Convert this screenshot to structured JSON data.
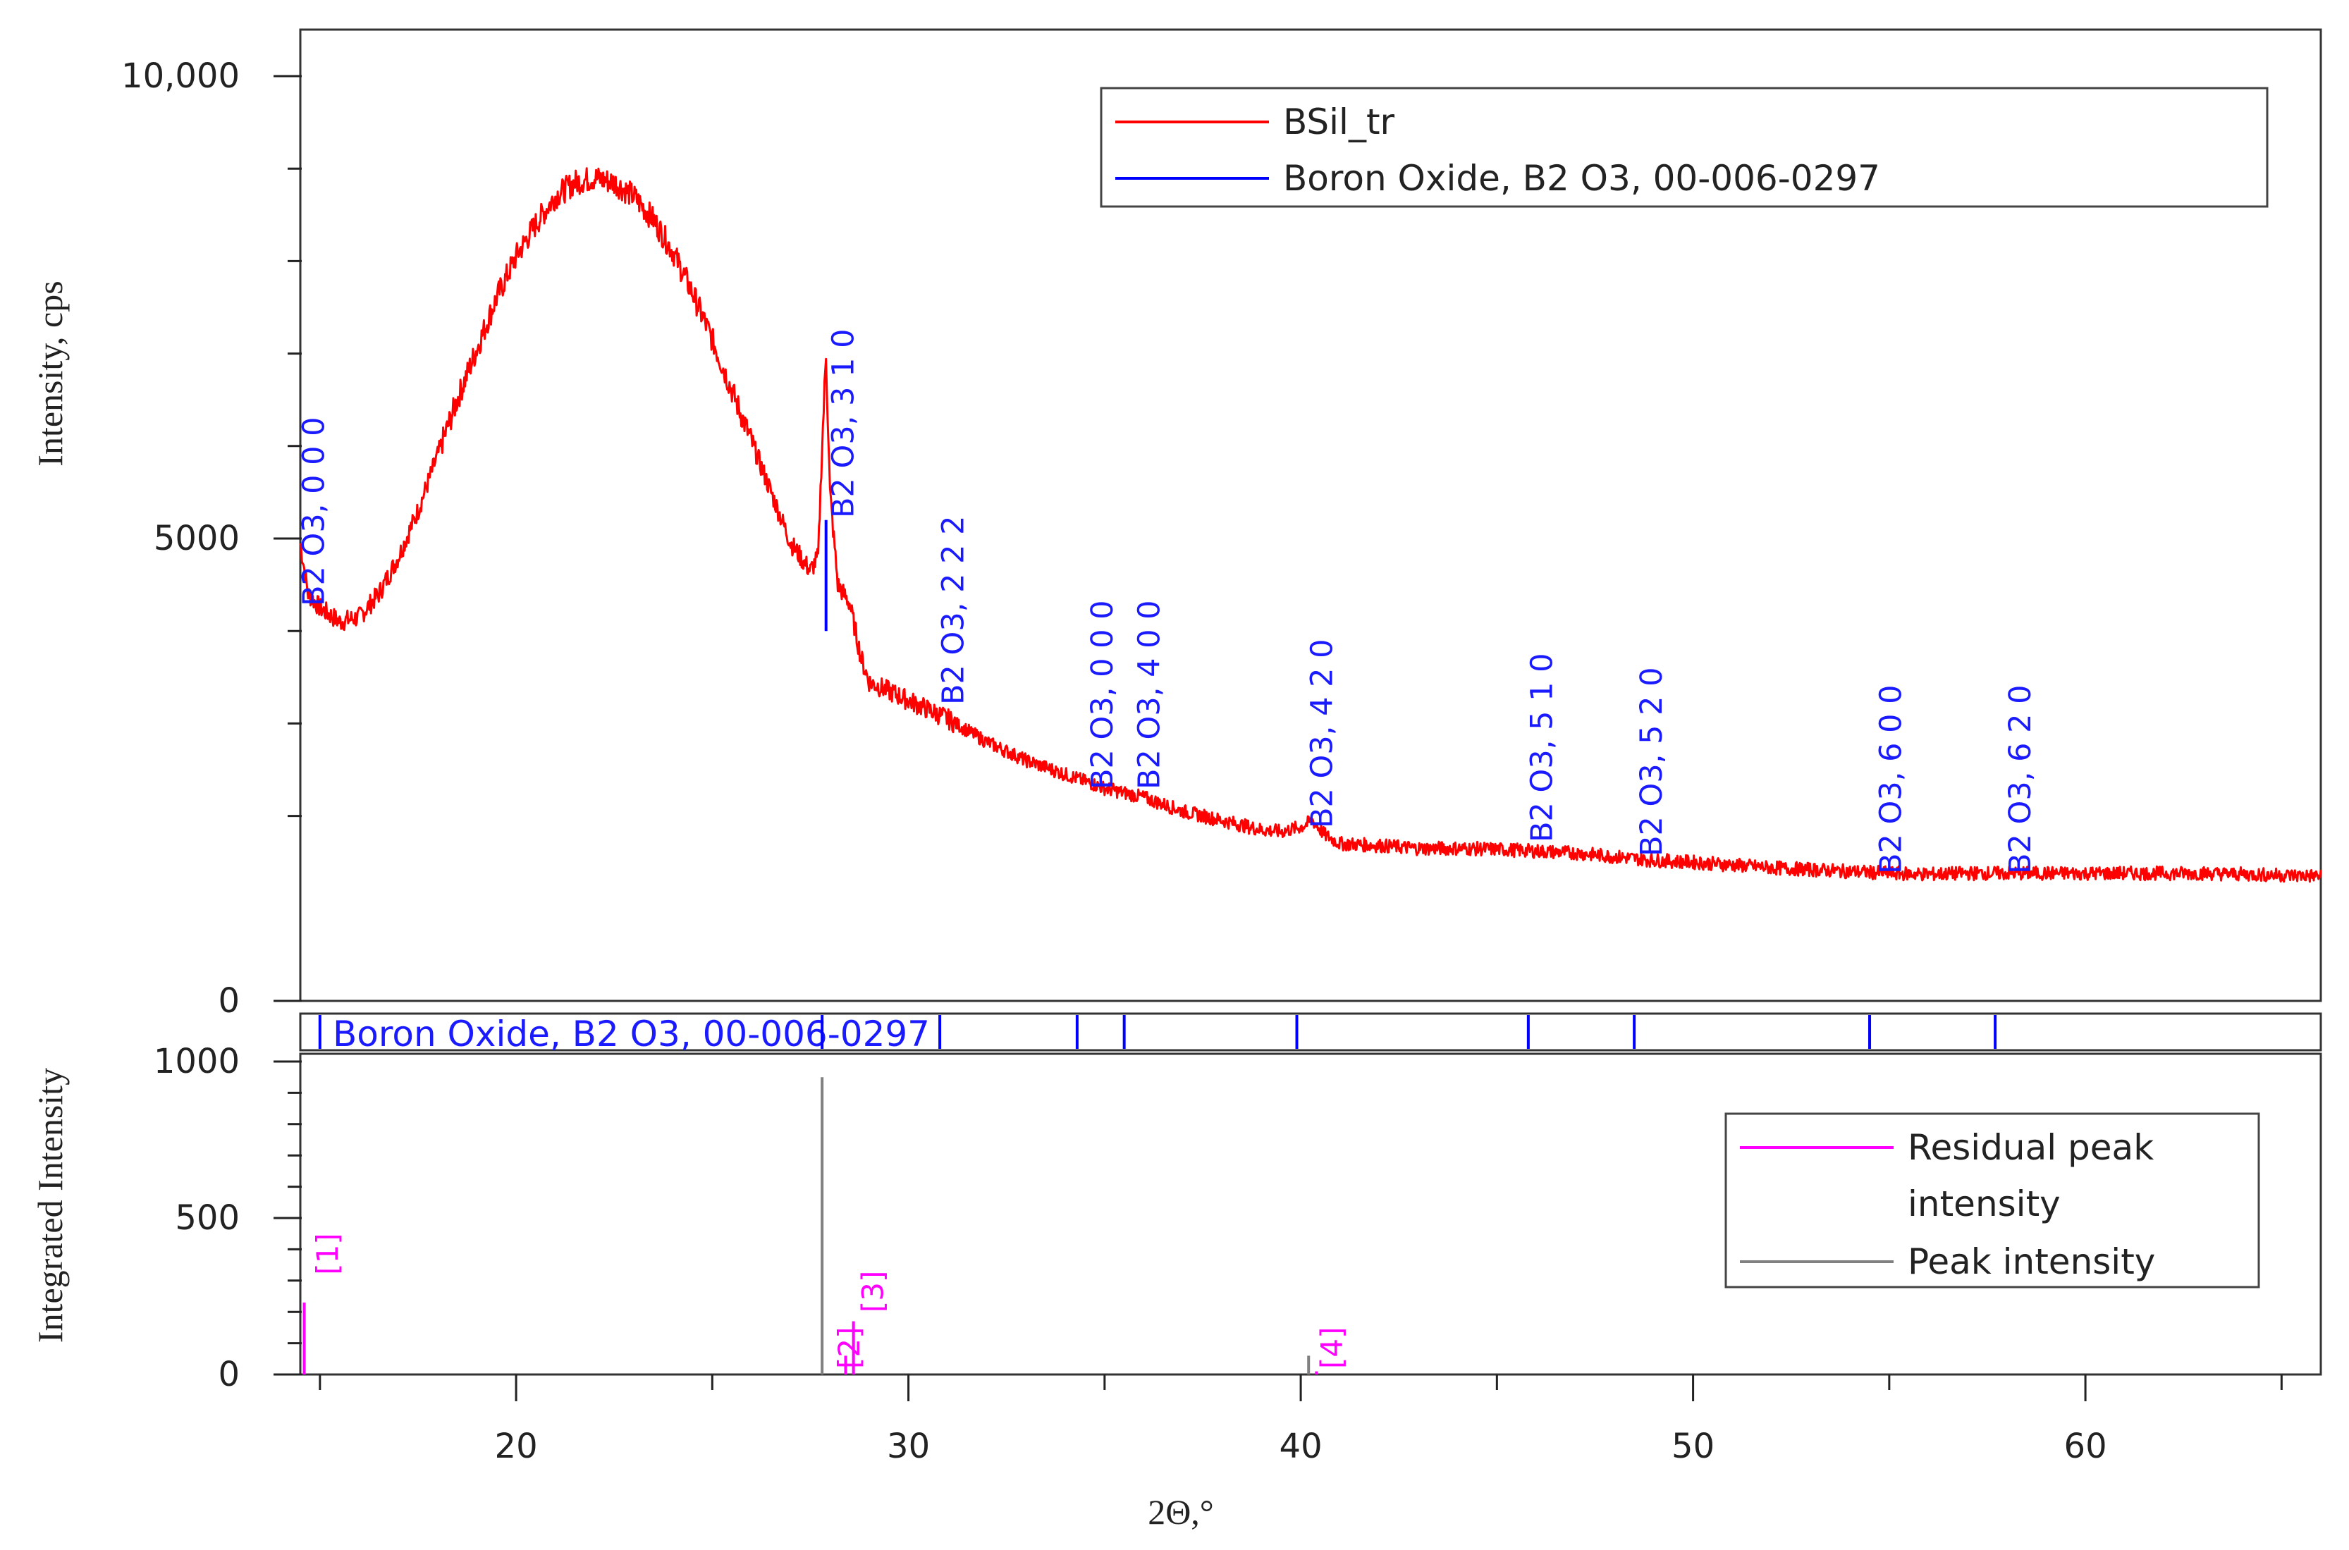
{
  "chart_data": [
    {
      "type": "line",
      "panel": "main",
      "ylabel": "Intensity, cps",
      "xlim": [
        14.5,
        66.0
      ],
      "ylim": [
        0,
        10500
      ],
      "ytick_labels": [
        {
          "value": 0,
          "label": "0"
        },
        {
          "value": 5000,
          "label": "5000"
        },
        {
          "value": 10000,
          "label": "10,000"
        }
      ],
      "minor_yticks": [
        2000,
        3000,
        4000,
        6000,
        7000,
        8000,
        9000
      ],
      "legend": {
        "position": "top-right",
        "entries": [
          {
            "label": "BSil_tr",
            "color": "#ff0000"
          },
          {
            "label": "Boron Oxide, B2 O3, 00-006-0297",
            "color": "#0000ff"
          }
        ]
      },
      "series": [
        {
          "name": "BSil_tr",
          "color": "#ff0000",
          "points": [
            [
              14.5,
              4950
            ],
            [
              14.7,
              4400
            ],
            [
              15.0,
              4250
            ],
            [
              15.5,
              4100
            ],
            [
              16.0,
              4150
            ],
            [
              16.5,
              4400
            ],
            [
              17.0,
              4800
            ],
            [
              17.5,
              5300
            ],
            [
              18.0,
              5900
            ],
            [
              18.5,
              6500
            ],
            [
              19.0,
              7050
            ],
            [
              19.5,
              7600
            ],
            [
              20.0,
              8050
            ],
            [
              20.5,
              8400
            ],
            [
              21.0,
              8700
            ],
            [
              21.5,
              8850
            ],
            [
              22.0,
              8900
            ],
            [
              22.5,
              8850
            ],
            [
              23.0,
              8700
            ],
            [
              23.5,
              8450
            ],
            [
              24.0,
              8100
            ],
            [
              24.5,
              7650
            ],
            [
              25.0,
              7150
            ],
            [
              25.5,
              6600
            ],
            [
              26.0,
              6050
            ],
            [
              26.5,
              5500
            ],
            [
              27.0,
              4950
            ],
            [
              27.5,
              4650
            ],
            [
              27.7,
              4800
            ],
            [
              27.8,
              6000
            ],
            [
              27.9,
              7000
            ],
            [
              28.0,
              5500
            ],
            [
              28.2,
              4500
            ],
            [
              28.5,
              4300
            ],
            [
              28.8,
              3700
            ],
            [
              29.0,
              3450
            ],
            [
              29.5,
              3350
            ],
            [
              30.0,
              3250
            ],
            [
              31.0,
              3050
            ],
            [
              32.0,
              2800
            ],
            [
              33.0,
              2600
            ],
            [
              34.0,
              2450
            ],
            [
              35.0,
              2300
            ],
            [
              36.0,
              2200
            ],
            [
              37.0,
              2050
            ],
            [
              38.0,
              1950
            ],
            [
              39.0,
              1850
            ],
            [
              39.5,
              1830
            ],
            [
              40.0,
              1880
            ],
            [
              40.3,
              1950
            ],
            [
              40.6,
              1800
            ],
            [
              41.0,
              1700
            ],
            [
              42.0,
              1680
            ],
            [
              43.0,
              1650
            ],
            [
              44.0,
              1650
            ],
            [
              45.0,
              1640
            ],
            [
              46.0,
              1620
            ],
            [
              47.0,
              1600
            ],
            [
              48.0,
              1560
            ],
            [
              49.0,
              1520
            ],
            [
              50.0,
              1500
            ],
            [
              51.0,
              1470
            ],
            [
              52.0,
              1440
            ],
            [
              53.0,
              1420
            ],
            [
              54.0,
              1400
            ],
            [
              55.0,
              1380
            ],
            [
              56.0,
              1370
            ],
            [
              57.0,
              1380
            ],
            [
              58.0,
              1380
            ],
            [
              59.0,
              1380
            ],
            [
              60.0,
              1380
            ],
            [
              61.0,
              1380
            ],
            [
              62.0,
              1380
            ],
            [
              63.0,
              1380
            ],
            [
              64.0,
              1370
            ],
            [
              65.0,
              1360
            ],
            [
              66.0,
              1350
            ]
          ]
        }
      ],
      "reference_marker": {
        "name": "Boron Oxide, B2 O3, 00-006-0297",
        "color": "#0000ff",
        "x": 27.9,
        "y_range": [
          4000,
          5200
        ]
      },
      "peak_annotations": [
        {
          "x": 15.1,
          "label": "B2 O3, 0 0 0"
        },
        {
          "x": 28.6,
          "label": "B2 O3, 3 1 0"
        },
        {
          "x": 31.4,
          "label": "B2 O3, 2 2 2"
        },
        {
          "x": 35.2,
          "label": "B2 O3, 0 0 0"
        },
        {
          "x": 36.4,
          "label": "B2 O3, 4 0 0"
        },
        {
          "x": 40.8,
          "label": "B2 O3, 4 2 0"
        },
        {
          "x": 46.4,
          "label": "B2 O3, 5 1 0"
        },
        {
          "x": 49.2,
          "label": "B2 O3, 5 2 0"
        },
        {
          "x": 55.3,
          "label": "B2 O3, 6 0 0"
        },
        {
          "x": 58.6,
          "label": "B2 O3, 6 2 0"
        }
      ]
    },
    {
      "type": "bar",
      "panel": "reference-strip",
      "title": "Boron Oxide, B2 O3, 00-006-0297",
      "color": "#0000ff",
      "x_positions": [
        15.0,
        27.8,
        30.8,
        34.3,
        35.5,
        39.9,
        45.8,
        48.5,
        54.5,
        57.7
      ]
    },
    {
      "type": "bar",
      "panel": "lower",
      "ylabel": "Integrated Intensity",
      "xlabel": "2Θ,°",
      "xlim": [
        14.5,
        66.0
      ],
      "ylim": [
        0,
        1040
      ],
      "ytick_labels": [
        {
          "value": 0,
          "label": "0"
        },
        {
          "value": 500,
          "label": "500"
        },
        {
          "value": 1000,
          "label": "1000"
        }
      ],
      "minor_yticks": [
        100,
        200,
        300,
        400,
        600,
        700,
        800,
        900
      ],
      "xtick_labels": [
        {
          "value": 20,
          "label": "20"
        },
        {
          "value": 30,
          "label": "30"
        },
        {
          "value": 40,
          "label": "40"
        },
        {
          "value": 50,
          "label": "50"
        },
        {
          "value": 60,
          "label": "60"
        }
      ],
      "xtick_minor": [
        15,
        25,
        35,
        45,
        55,
        65
      ],
      "legend": {
        "position": "right",
        "entries": [
          {
            "label": "Residual peak intensity",
            "label_lines": [
              "Residual peak",
              "intensity"
            ],
            "color": "#ff00ff"
          },
          {
            "label": "Peak intensity",
            "color": "#808080"
          }
        ]
      },
      "series": [
        {
          "name": "Peak intensity",
          "color": "#808080",
          "bars": [
            {
              "x": 27.8,
              "value": 950
            },
            {
              "x": 40.2,
              "value": 60
            }
          ]
        },
        {
          "name": "Residual peak intensity",
          "color": "#ff00ff",
          "bars": [
            {
              "x": 14.6,
              "value": 230
            },
            {
              "x": 28.4,
              "value": 60
            },
            {
              "x": 28.6,
              "value": 170
            },
            {
              "x": 40.4,
              "value": 10
            }
          ]
        }
      ],
      "peak_labels": [
        {
          "x": 15.2,
          "value": 300,
          "label": "[1]"
        },
        {
          "x": 28.5,
          "value": 0,
          "label": "[2]"
        },
        {
          "x": 29.1,
          "value": 180,
          "label": "[3]"
        },
        {
          "x": 40.8,
          "value": 0,
          "label": "[4]"
        }
      ]
    }
  ]
}
